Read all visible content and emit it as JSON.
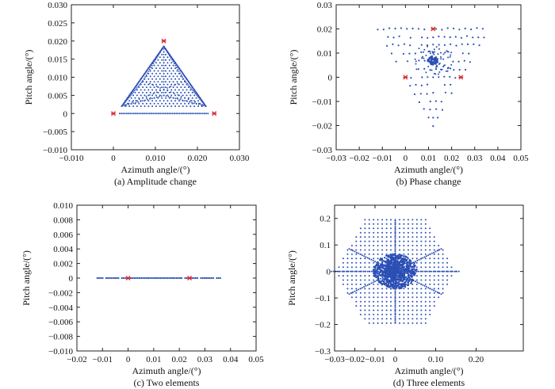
{
  "chart_data": [
    {
      "type": "scatter",
      "caption": "(a) Amplitude change",
      "xlabel": "Azimuth angle/(°)",
      "ylabel": "Pitch angle/(°)",
      "xlim": [
        -0.01,
        0.03
      ],
      "ylim": [
        -0.01,
        0.03
      ],
      "xticks": [
        -0.01,
        0,
        0.01,
        0.02,
        0.03
      ],
      "xtick_labels": [
        "−0.010",
        "0",
        "0.010",
        "0.020",
        "0.030"
      ],
      "yticks": [
        -0.01,
        -0.005,
        0,
        0.005,
        0.01,
        0.015,
        0.02,
        0.025,
        0.03
      ],
      "ytick_labels": [
        "−0.010",
        "−0.005",
        "0",
        "0.005",
        "0.010",
        "0.015",
        "0.020",
        "0.025",
        "0.030"
      ],
      "grid": false,
      "markers": {
        "x": [
          0,
          0.024,
          0.012
        ],
        "y": [
          0,
          0,
          0.02
        ],
        "color": "#d8292f"
      },
      "points": {
        "color": "#2b4fb5",
        "pattern": "triangle",
        "vertices": [
          [
            0.002,
            0.002
          ],
          [
            0.022,
            0.002
          ],
          [
            0.012,
            0.0185
          ]
        ],
        "base": {
          "x": [
            0.0015,
            0.0225
          ],
          "y": 0
        }
      }
    },
    {
      "type": "scatter",
      "caption": "(b) Phase change",
      "xlabel": "Azimuth angle/(°)",
      "ylabel": "Pitch angle/(°)",
      "xlim": [
        -0.03,
        0.05
      ],
      "ylim": [
        -0.03,
        0.03
      ],
      "xticks": [
        -0.03,
        -0.02,
        -0.01,
        0,
        0.01,
        0.02,
        0.03,
        0.04,
        0.05
      ],
      "xtick_labels": [
        "−0.03",
        "−0.02",
        "−0.01",
        "0",
        "0.01",
        "0.02",
        "0.03",
        "0.04",
        "0.05"
      ],
      "yticks": [
        -0.03,
        -0.02,
        -0.01,
        0,
        0.01,
        0.02,
        0.03
      ],
      "ytick_labels": [
        "−0.03",
        "−0.02",
        "−0.01",
        "0",
        "0.01",
        "0.02",
        "0.03"
      ],
      "grid": false,
      "markers": {
        "x": [
          0,
          0.024,
          0.012
        ],
        "y": [
          0,
          0,
          0.02
        ],
        "color": "#d8292f"
      },
      "points": {
        "color": "#2b4fb5",
        "pattern": "inverted-triangle",
        "vertices": [
          [
            -0.012,
            0.02
          ],
          [
            0.036,
            0.02
          ],
          [
            0.012,
            -0.02
          ]
        ],
        "cluster": [
          0.012,
          0.007
        ]
      }
    },
    {
      "type": "scatter",
      "caption": "(c) Two elements",
      "xlabel": "Azimuth angle/(°)",
      "ylabel": "Pitch angle/(°)",
      "xlim": [
        -0.02,
        0.05
      ],
      "ylim": [
        -0.01,
        0.01
      ],
      "xticks": [
        -0.02,
        -0.01,
        0,
        0.01,
        0.02,
        0.03,
        0.04,
        0.05
      ],
      "xtick_labels": [
        "−0.02",
        "−0.01",
        "0",
        "0.01",
        "0.02",
        "0.03",
        "0.04",
        "0.05"
      ],
      "yticks": [
        -0.01,
        -0.008,
        -0.006,
        -0.004,
        -0.002,
        0,
        0.002,
        0.004,
        0.006,
        0.008,
        0.01
      ],
      "ytick_labels": [
        "−0.010",
        "−0.008",
        "−0.006",
        "−0.004",
        "−0.002",
        "0",
        "0.002",
        "0.004",
        "0.006",
        "0.008",
        "0.010"
      ],
      "grid": false,
      "markers": {
        "x": [
          0,
          0.024
        ],
        "y": [
          0,
          0
        ],
        "color": "#d8292f"
      },
      "points": {
        "color": "#2b4fb5",
        "pattern": "line",
        "x": [
          -0.012,
          0.036
        ],
        "y": 0
      }
    },
    {
      "type": "scatter",
      "caption": "(d) Three elements",
      "xlabel": "Azimuth angle/(°)",
      "ylabel": "Pitch angle/(°)",
      "xlim": [
        -0.03,
        0.25
      ],
      "ylim": [
        -0.3,
        0.25
      ],
      "xticks": [
        -0.03,
        -0.02,
        -0.01,
        0,
        0.1,
        0.2
      ],
      "xtick_labels": [
        "−0.03",
        "−0.02",
        "−0.01",
        "0",
        "0.10",
        "0.20"
      ],
      "xtick_positions": [
        -0.03,
        0.0,
        0.03,
        0.06,
        0.12,
        0.18
      ],
      "yticks": [
        -0.3,
        -0.2,
        -0.1,
        0,
        0.1,
        0.2
      ],
      "ytick_labels": [
        "−0.3",
        "−0.2",
        "−0.1",
        "0",
        "0.1",
        "0.2"
      ],
      "grid": false,
      "points": {
        "color": "#2b4fb5",
        "pattern": "hexagon",
        "center": [
          0.06,
          0.0
        ],
        "halfwidth": 0.09,
        "halfheight": 0.195
      }
    }
  ],
  "colors": {
    "points": "#2b4fb5",
    "markers": "#d8292f",
    "axes": "#222222"
  }
}
